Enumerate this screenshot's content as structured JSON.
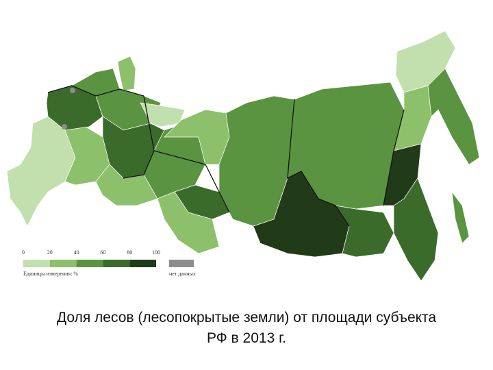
{
  "legend": {
    "ticks": [
      0,
      20,
      40,
      60,
      80,
      100
    ],
    "colors": [
      "#c2dfae",
      "#8cc06a",
      "#5b9440",
      "#3b6b2b",
      "#213a18"
    ],
    "unit_label": "Единицы измерения: %",
    "no_data_label": "нет данных",
    "no_data_color": "#8c8c8c"
  },
  "caption": [
    "Доля лесов (лесопокрытые земли) от площади субъекта",
    "РФ в 2013 г."
  ]
}
